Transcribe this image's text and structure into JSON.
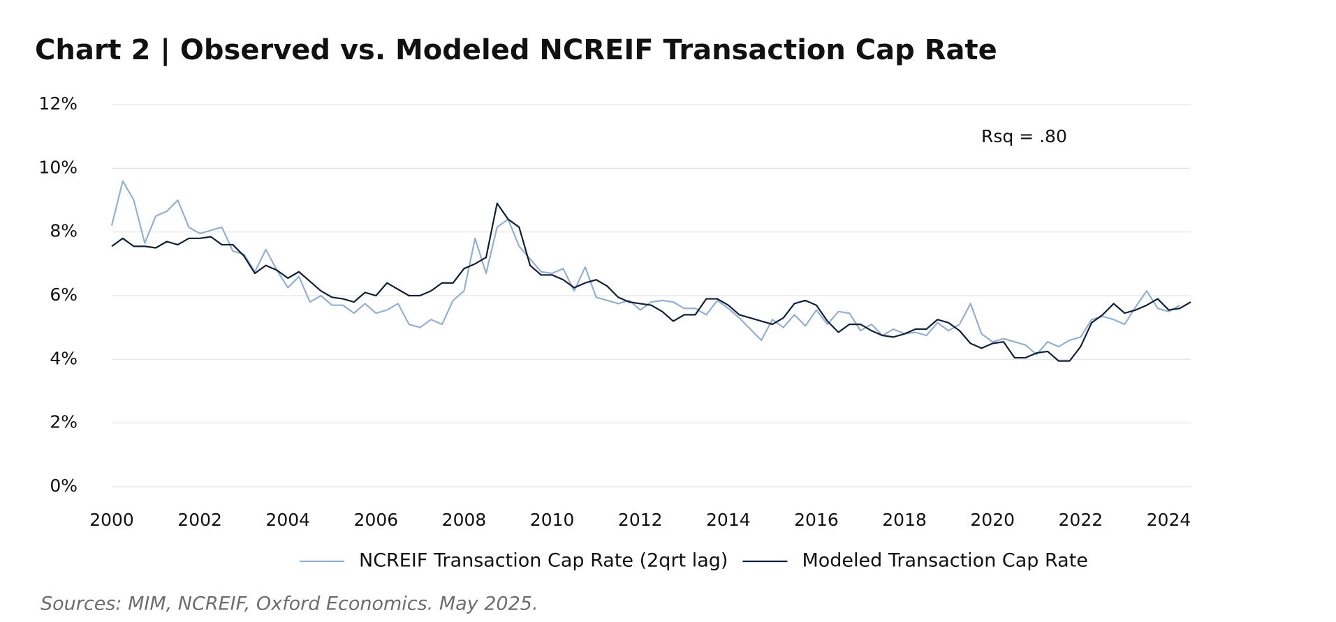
{
  "chart_data": {
    "type": "line",
    "title": "Chart 2  |  Observed vs. Modeled NCREIF Transaction Cap Rate",
    "annotation": "Rsq = .80",
    "source": "Sources: MIM, NCREIF, Oxford Economics. May 2025.",
    "x": [
      2000,
      2000.25,
      2000.5,
      2000.75,
      2001,
      2001.25,
      2001.5,
      2001.75,
      2002,
      2002.25,
      2002.5,
      2002.75,
      2003,
      2003.25,
      2003.5,
      2003.75,
      2004,
      2004.25,
      2004.5,
      2004.75,
      2005,
      2005.25,
      2005.5,
      2005.75,
      2006,
      2006.25,
      2006.5,
      2006.75,
      2007,
      2007.25,
      2007.5,
      2007.75,
      2008,
      2008.25,
      2008.5,
      2008.75,
      2009,
      2009.25,
      2009.5,
      2009.75,
      2010,
      2010.25,
      2010.5,
      2010.75,
      2011,
      2011.25,
      2011.5,
      2011.75,
      2012,
      2012.25,
      2012.5,
      2012.75,
      2013,
      2013.25,
      2013.5,
      2013.75,
      2014,
      2014.25,
      2014.5,
      2014.75,
      2015,
      2015.25,
      2015.5,
      2015.75,
      2016,
      2016.25,
      2016.5,
      2016.75,
      2017,
      2017.25,
      2017.5,
      2017.75,
      2018,
      2018.25,
      2018.5,
      2018.75,
      2019,
      2019.25,
      2019.5,
      2019.75,
      2020,
      2020.25,
      2020.5,
      2020.75,
      2021,
      2021.25,
      2021.5,
      2021.75,
      2022,
      2022.25,
      2022.5,
      2022.75,
      2023,
      2023.25,
      2023.5,
      2023.75,
      2024,
      2024.25,
      2024.5
    ],
    "series": [
      {
        "name": "NCREIF Transaction Cap Rate (2qrt lag)",
        "color": "#93afd2",
        "values": [
          8.2,
          9.6,
          9.0,
          7.65,
          8.5,
          8.65,
          9.0,
          8.15,
          7.95,
          8.05,
          8.15,
          7.4,
          7.3,
          6.75,
          7.45,
          6.8,
          6.25,
          6.6,
          5.8,
          6.0,
          5.7,
          5.7,
          5.45,
          5.75,
          5.45,
          5.55,
          5.75,
          5.1,
          5.0,
          5.25,
          5.1,
          5.85,
          6.15,
          7.8,
          6.7,
          8.15,
          8.4,
          7.55,
          7.15,
          6.75,
          6.7,
          6.85,
          6.15,
          6.9,
          5.95,
          5.85,
          5.75,
          5.85,
          5.55,
          5.8,
          5.85,
          5.8,
          5.6,
          5.6,
          5.4,
          5.85,
          5.6,
          5.3,
          4.95,
          4.6,
          5.25,
          5.0,
          5.4,
          5.05,
          5.55,
          5.1,
          5.5,
          5.45,
          4.9,
          5.1,
          4.75,
          4.95,
          4.8,
          4.85,
          4.75,
          5.15,
          4.9,
          5.1,
          5.75,
          4.8,
          4.55,
          4.65,
          4.55,
          4.45,
          4.15,
          4.55,
          4.4,
          4.6,
          4.7,
          5.25,
          5.35,
          5.25,
          5.1,
          5.65,
          6.15,
          5.6,
          5.5,
          5.7,
          null
        ]
      },
      {
        "name": "Modeled Transaction Cap Rate",
        "color": "#0f1f38",
        "values": [
          7.55,
          7.8,
          7.55,
          7.55,
          7.5,
          7.7,
          7.6,
          7.8,
          7.8,
          7.85,
          7.6,
          7.6,
          7.25,
          6.7,
          6.95,
          6.8,
          6.55,
          6.75,
          6.45,
          6.15,
          5.95,
          5.9,
          5.8,
          6.1,
          6.0,
          6.4,
          6.2,
          6.0,
          6.0,
          6.15,
          6.4,
          6.4,
          6.85,
          7.0,
          7.2,
          8.9,
          8.4,
          8.15,
          6.95,
          6.65,
          6.65,
          6.5,
          6.25,
          6.4,
          6.5,
          6.3,
          5.95,
          5.8,
          5.75,
          5.7,
          5.5,
          5.2,
          5.4,
          5.4,
          5.9,
          5.9,
          5.7,
          5.4,
          5.3,
          5.2,
          5.1,
          5.3,
          5.75,
          5.85,
          5.7,
          5.2,
          4.85,
          5.1,
          5.1,
          4.9,
          4.75,
          4.7,
          4.8,
          4.95,
          4.95,
          5.25,
          5.15,
          4.9,
          4.5,
          4.35,
          4.5,
          4.55,
          4.05,
          4.05,
          4.2,
          4.25,
          3.95,
          3.95,
          4.4,
          5.15,
          5.4,
          5.75,
          5.45,
          5.55,
          5.7,
          5.9,
          5.55,
          5.6,
          5.8
        ]
      }
    ],
    "xlim": [
      2000,
      2024.5
    ],
    "xticks": [
      2000,
      2002,
      2004,
      2006,
      2008,
      2010,
      2012,
      2014,
      2016,
      2018,
      2020,
      2022,
      2024
    ],
    "ylim": [
      0,
      12
    ],
    "yticks": [
      {
        "value": 0,
        "label": "0%"
      },
      {
        "value": 2,
        "label": "2%"
      },
      {
        "value": 4,
        "label": "4%"
      },
      {
        "value": 6,
        "label": "6%"
      },
      {
        "value": 8,
        "label": "8%"
      },
      {
        "value": 10,
        "label": "10%"
      },
      {
        "value": 12,
        "label": "12%"
      }
    ],
    "grid": true,
    "legend": "bottom"
  }
}
